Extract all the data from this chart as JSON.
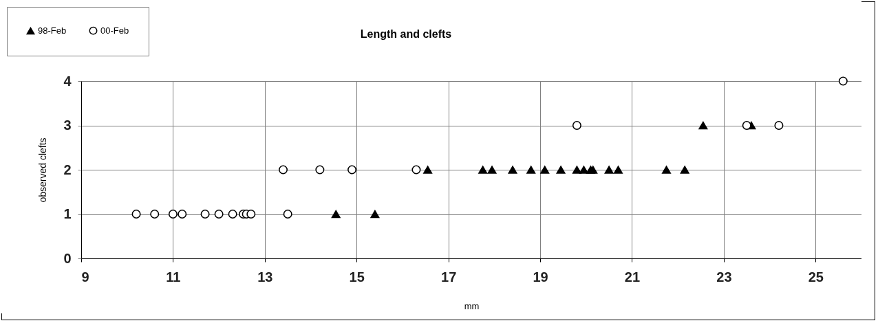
{
  "chart_data": {
    "type": "scatter",
    "title": "Length and clefts",
    "xlabel": "mm",
    "ylabel": "observed clefts",
    "xlim": [
      9,
      26
    ],
    "xticks": [
      9,
      11,
      13,
      15,
      17,
      19,
      21,
      23,
      25
    ],
    "ylim": [
      0,
      4
    ],
    "yticks": [
      0,
      1,
      2,
      3,
      4
    ],
    "grid": true,
    "legend": "top left",
    "series": [
      {
        "name": "98-Feb",
        "color": "#000000",
        "marker": "triangle",
        "x": [
          14.55,
          15.4,
          16.55,
          17.75,
          17.95,
          18.4,
          18.8,
          19.1,
          19.45,
          19.8,
          19.95,
          20.1,
          20.15,
          20.5,
          20.7,
          21.75,
          22.15,
          22.55,
          23.6
        ],
        "values": [
          1,
          1,
          2,
          2,
          2,
          2,
          2,
          2,
          2,
          2,
          2,
          2,
          2,
          2,
          2,
          2,
          2,
          3,
          3
        ]
      },
      {
        "name": "00-Feb",
        "color": "#000000",
        "marker": "circle",
        "x": [
          10.2,
          10.6,
          11.0,
          11.2,
          11.7,
          12.0,
          12.3,
          12.53,
          12.6,
          12.7,
          13.4,
          13.5,
          14.2,
          14.9,
          16.3,
          19.8,
          23.5,
          24.2,
          25.6
        ],
        "values": [
          1,
          1,
          1,
          1,
          1,
          1,
          1,
          1,
          1,
          1,
          2,
          1,
          2,
          2,
          2,
          3,
          3,
          3,
          4
        ]
      }
    ]
  }
}
